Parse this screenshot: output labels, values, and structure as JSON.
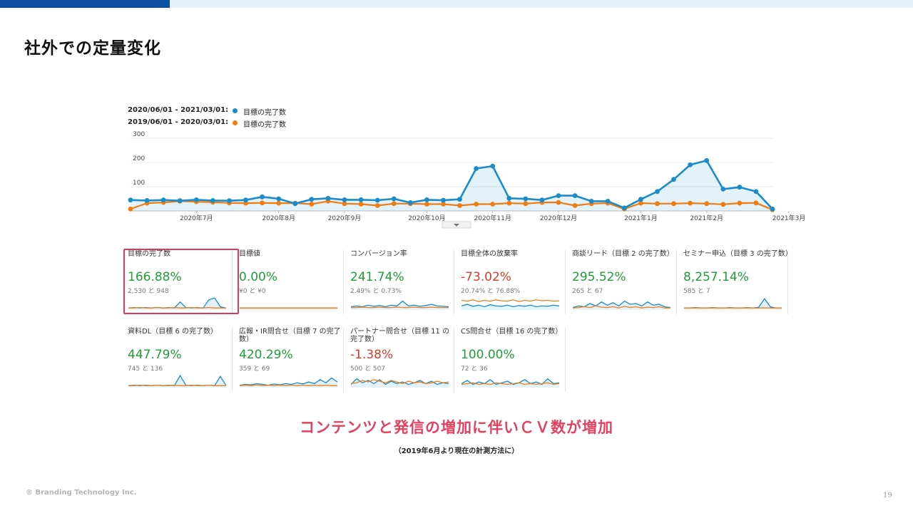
{
  "slide": {
    "title": "社外での定量変化",
    "headline": "コンテンツと発信の増加に伴いＣＶ数が増加",
    "note": "（2019年6月より現在の計測方法に）",
    "copyright": "® Branding Technology Inc.",
    "page_number": "19"
  },
  "colors": {
    "current": "#1b8cc9",
    "previous": "#ee7d14",
    "accent": "#e2425f",
    "positive": "#1e9e3a",
    "negative": "#d93b2b"
  },
  "legend": [
    {
      "range": "2020/06/01 - 2021/03/01:",
      "label": "目標の完了数"
    },
    {
      "range": "2019/06/01 - 2020/03/01:",
      "label": "目標の完了数"
    }
  ],
  "chart_data": {
    "type": "line",
    "y_ticks": [
      100,
      200,
      300
    ],
    "ylim": [
      0,
      300
    ],
    "x_ticks": [
      "2020年7月",
      "2020年8月",
      "2020年9月",
      "2020年10月",
      "2020年11月",
      "2020年12月",
      "2021年1月",
      "2021年2月",
      "2021年3月"
    ],
    "x_tick_index": [
      4,
      9,
      13,
      18,
      22,
      26,
      31,
      35,
      40
    ],
    "grid": true,
    "series": [
      {
        "name": "2020/06/01 - 2021/03/01",
        "color": "#1b8cc9",
        "filled": true,
        "values": [
          45,
          43,
          45,
          42,
          46,
          43,
          42,
          45,
          58,
          50,
          30,
          48,
          52,
          46,
          46,
          44,
          50,
          34,
          46,
          44,
          48,
          175,
          185,
          52,
          50,
          45,
          63,
          63,
          40,
          40,
          12,
          48,
          80,
          130,
          190,
          208,
          90,
          98,
          80,
          8
        ]
      },
      {
        "name": "2019/06/01 - 2020/03/01",
        "color": "#ee7d14",
        "filled": false,
        "values": [
          8,
          32,
          35,
          40,
          38,
          36,
          33,
          32,
          33,
          32,
          32,
          28,
          40,
          30,
          28,
          22,
          30,
          30,
          28,
          28,
          22,
          28,
          28,
          32,
          30,
          35,
          35,
          22,
          30,
          32,
          8,
          32,
          30,
          30,
          32,
          30,
          27,
          32,
          33,
          5
        ]
      }
    ]
  },
  "tiles": [
    {
      "name": "目標の完了数",
      "pct": "166.88%",
      "sub": "2,530 と 948",
      "positive": true,
      "spark_current": [
        5,
        6,
        5,
        6,
        5,
        6,
        5,
        6,
        5,
        20,
        6,
        5,
        6,
        5,
        25,
        30,
        8,
        5
      ],
      "spark_previous": [
        5,
        5,
        6,
        5,
        5,
        6,
        5,
        5,
        6,
        5,
        5,
        6,
        5,
        5,
        6,
        5,
        5,
        5
      ]
    },
    {
      "name": "目標値",
      "pct": "0.00%",
      "sub": "¥0 と ¥0",
      "positive": true,
      "spark_current": [
        5,
        5,
        5,
        5,
        5,
        5,
        5,
        5,
        5,
        5,
        5,
        5,
        5,
        5,
        5,
        5,
        5,
        5
      ],
      "spark_previous": [
        5,
        5,
        5,
        5,
        5,
        5,
        5,
        5,
        5,
        5,
        5,
        5,
        5,
        5,
        5,
        5,
        5,
        5
      ]
    },
    {
      "name": "コンバージョン率",
      "pct": "241.74%",
      "sub": "2.49% と 0.73%",
      "positive": true,
      "spark_current": [
        8,
        10,
        8,
        12,
        9,
        11,
        8,
        12,
        10,
        22,
        10,
        12,
        9,
        11,
        14,
        10,
        9,
        8
      ],
      "spark_previous": [
        6,
        6,
        7,
        6,
        6,
        7,
        6,
        6,
        7,
        6,
        6,
        7,
        6,
        6,
        7,
        6,
        6,
        6
      ]
    },
    {
      "name": "目標全体の放棄率",
      "pct": "-73.02%",
      "sub": "20.74% と 76.88%",
      "positive": false,
      "spark_current": [
        10,
        14,
        9,
        12,
        8,
        13,
        10,
        9,
        12,
        8,
        11,
        9,
        12,
        8,
        10,
        9,
        12,
        10
      ],
      "spark_previous": [
        24,
        22,
        25,
        21,
        24,
        22,
        25,
        23,
        22,
        25,
        21,
        24,
        22,
        25,
        23,
        24,
        22,
        23
      ]
    },
    {
      "name": "商談リード（目標 2 の完了数）",
      "pct": "295.52%",
      "sub": "265 と 67",
      "positive": true,
      "spark_current": [
        6,
        10,
        8,
        16,
        10,
        20,
        12,
        18,
        10,
        22,
        14,
        16,
        10,
        20,
        12,
        14,
        8,
        6
      ],
      "spark_previous": [
        5,
        6,
        8,
        6,
        10,
        7,
        6,
        8,
        5,
        9,
        6,
        8,
        5,
        7,
        6,
        8,
        5,
        5
      ]
    },
    {
      "name": "セミナー申込（目標 3 の完了数）",
      "pct": "8,257.14%",
      "sub": "585 と 7",
      "positive": true,
      "spark_current": [
        5,
        5,
        6,
        5,
        5,
        6,
        5,
        5,
        6,
        5,
        5,
        6,
        5,
        7,
        28,
        8,
        5,
        5
      ],
      "spark_previous": [
        5,
        5,
        5,
        5,
        5,
        5,
        5,
        5,
        5,
        5,
        5,
        5,
        5,
        5,
        5,
        5,
        5,
        5
      ]
    },
    {
      "name": "資料DL（目標 6 の完了数）",
      "pct": "447.79%",
      "sub": "745 と 136",
      "positive": true,
      "spark_current": [
        5,
        6,
        5,
        6,
        5,
        6,
        5,
        6,
        5,
        30,
        6,
        5,
        6,
        5,
        6,
        5,
        28,
        5
      ],
      "spark_previous": [
        5,
        5,
        6,
        5,
        5,
        6,
        5,
        5,
        6,
        5,
        5,
        6,
        5,
        5,
        6,
        5,
        5,
        5
      ]
    },
    {
      "name": "広報・IR問合せ（目標 7 の完了数）",
      "pct": "420.29%",
      "sub": "359 と 69",
      "positive": true,
      "spark_current": [
        6,
        8,
        7,
        10,
        8,
        6,
        9,
        7,
        10,
        8,
        12,
        9,
        14,
        10,
        20,
        12,
        24,
        14
      ],
      "spark_previous": [
        5,
        6,
        5,
        7,
        5,
        6,
        5,
        6,
        5,
        6,
        5,
        6,
        5,
        6,
        5,
        6,
        5,
        5
      ]
    },
    {
      "name": "パートナー問合せ（目標 11 の完了数）",
      "pct": "-1.38%",
      "sub": "500 と 507",
      "positive": false,
      "spark_current": [
        8,
        22,
        12,
        18,
        10,
        20,
        8,
        16,
        10,
        14,
        8,
        12,
        18,
        10,
        16,
        8,
        12,
        10
      ],
      "spark_previous": [
        10,
        12,
        18,
        14,
        20,
        16,
        12,
        18,
        14,
        10,
        16,
        12,
        14,
        10,
        12,
        16,
        12,
        14
      ]
    },
    {
      "name": "CS問合せ（目標 16 の完了数）",
      "pct": "100.00%",
      "sub": "72 と 36",
      "positive": true,
      "spark_current": [
        10,
        18,
        8,
        14,
        10,
        20,
        8,
        12,
        16,
        8,
        12,
        20,
        10,
        14,
        8,
        22,
        10,
        12
      ],
      "spark_previous": [
        8,
        10,
        12,
        8,
        10,
        8,
        12,
        10,
        8,
        10,
        12,
        8,
        10,
        8,
        10,
        12,
        8,
        10
      ]
    }
  ]
}
